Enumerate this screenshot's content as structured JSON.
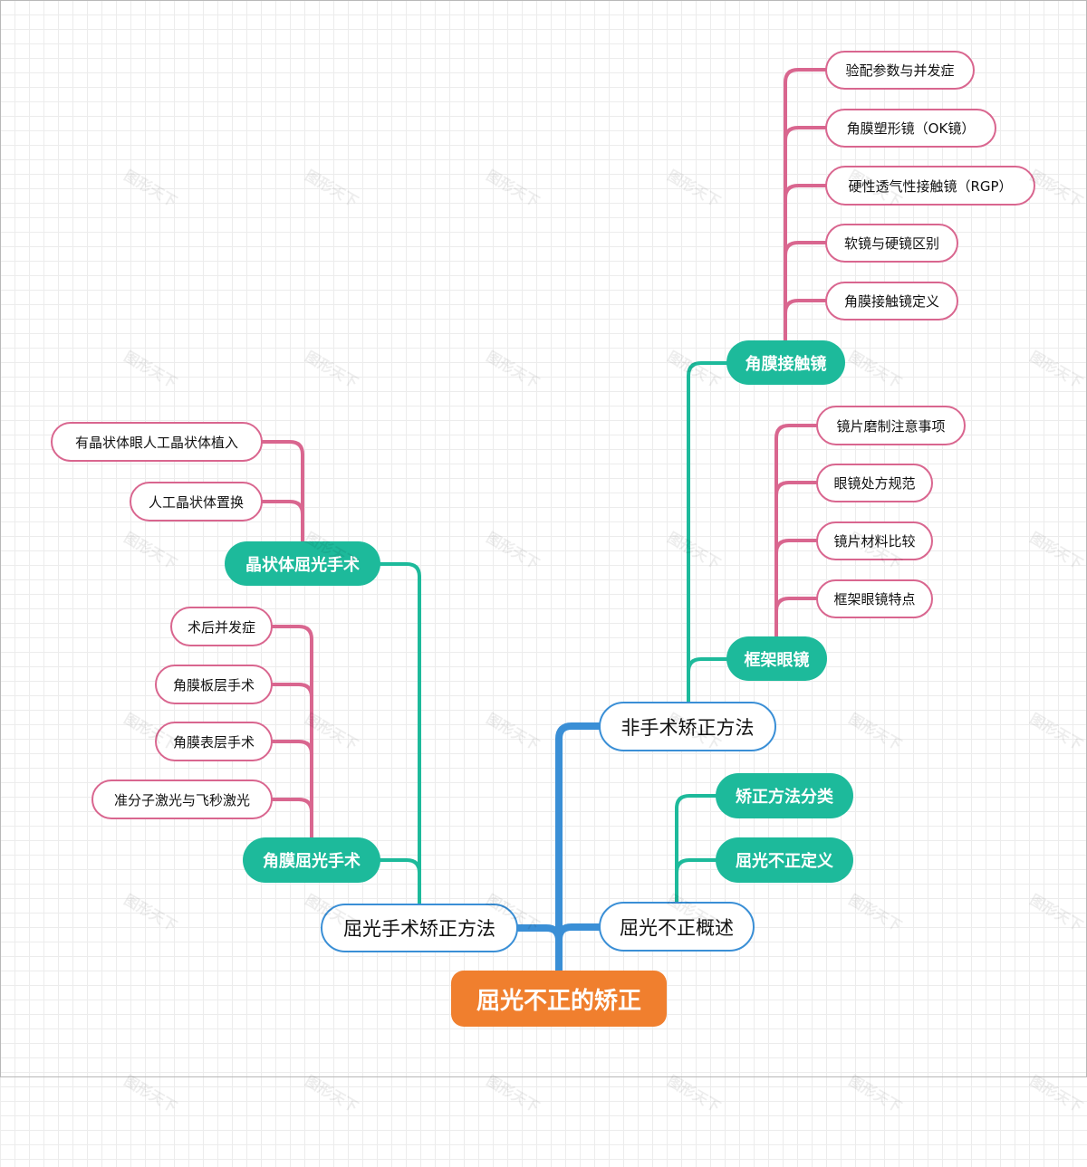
{
  "watermark": "图形天下",
  "colors": {
    "root": "#f07f2e",
    "level1_border": "#3a8fd6",
    "level2": "#1dba9b",
    "level3_border": "#d9668f",
    "trunk": "#3a8fd6"
  },
  "root": {
    "label": "屈光不正的矫正"
  },
  "branches": {
    "non_surgical": {
      "label": "非手术矫正方法",
      "contact_lens": {
        "label": "角膜接触镜",
        "items": [
          "验配参数与并发症",
          "角膜塑形镜（OK镜）",
          "硬性透气性接触镜（RGP）",
          "软镜与硬镜区别",
          "角膜接触镜定义"
        ]
      },
      "glasses": {
        "label": "框架眼镜",
        "items": [
          "镜片磨制注意事项",
          "眼镜处方规范",
          "镜片材料比较",
          "框架眼镜特点"
        ]
      }
    },
    "overview": {
      "label": "屈光不正概述",
      "items": [
        "矫正方法分类",
        "屈光不正定义"
      ]
    },
    "surgical": {
      "label": "屈光手术矫正方法",
      "lens_surgery": {
        "label": "晶状体屈光手术",
        "items": [
          "有晶状体眼人工晶状体植入",
          "人工晶状体置换"
        ]
      },
      "cornea_surgery": {
        "label": "角膜屈光手术",
        "items": [
          "术后并发症",
          "角膜板层手术",
          "角膜表层手术",
          "准分子激光与飞秒激光"
        ]
      }
    }
  }
}
